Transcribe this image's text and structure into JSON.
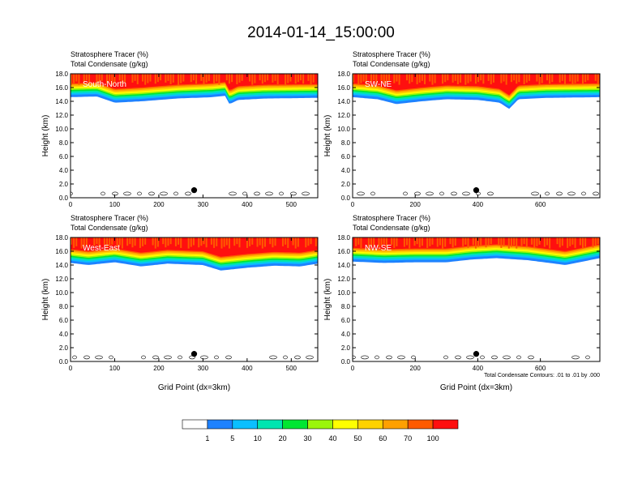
{
  "title": "2014-01-14_15:00:00",
  "contour_note": "Total Condensate Contours: .01 to .01 by .000",
  "colors": {
    "levels": [
      "#ffffff",
      "#1e82ff",
      "#0abfff",
      "#00e5b0",
      "#00e632",
      "#9bf50a",
      "#ffff00",
      "#ffd200",
      "#ffa000",
      "#ff5a00",
      "#ff0f0f"
    ],
    "contour": "#000000",
    "marker": "#000000"
  },
  "colorbar": {
    "labels": [
      "1",
      "5",
      "10",
      "20",
      "30",
      "40",
      "50",
      "60",
      "70",
      "100"
    ]
  },
  "chart_data": [
    {
      "type": "heatmap",
      "label": "South-North",
      "fields": [
        "Stratosphere Tracer   (%)",
        "Total Condensate   (g/kg)"
      ],
      "ylabel": "Height (km)",
      "xlabel": "",
      "xlim": [
        0,
        560
      ],
      "ylim": [
        0,
        18
      ],
      "xticks": [
        0,
        100,
        200,
        300,
        400,
        500
      ],
      "yticks": [
        "0.0",
        "2.0",
        "4.0",
        "6.0",
        "8.0",
        "10.0",
        "12.0",
        "14.0",
        "16.0",
        "18.0"
      ],
      "marker": {
        "x": 280,
        "y": 1.1
      },
      "tracer_base_km": [
        [
          0,
          14.6
        ],
        [
          60,
          14.7
        ],
        [
          100,
          13.8
        ],
        [
          160,
          14.0
        ],
        [
          240,
          14.4
        ],
        [
          320,
          14.6
        ],
        [
          350,
          14.8
        ],
        [
          360,
          13.6
        ],
        [
          380,
          14.2
        ],
        [
          440,
          14.4
        ],
        [
          560,
          14.5
        ]
      ]
    },
    {
      "type": "heatmap",
      "label": "SW-NE",
      "fields": [
        "Stratosphere Tracer   (%)",
        "Total Condensate   (g/kg)"
      ],
      "ylabel": "Height (km)",
      "xlabel": "",
      "xlim": [
        0,
        790
      ],
      "ylim": [
        0,
        18
      ],
      "xticks": [
        0,
        200,
        400,
        600
      ],
      "yticks": [
        "0.0",
        "2.0",
        "4.0",
        "6.0",
        "8.0",
        "10.0",
        "12.0",
        "14.0",
        "16.0",
        "18.0"
      ],
      "marker": {
        "x": 395,
        "y": 1.1
      },
      "tracer_base_km": [
        [
          0,
          14.6
        ],
        [
          80,
          14.3
        ],
        [
          140,
          13.6
        ],
        [
          220,
          14.0
        ],
        [
          300,
          14.3
        ],
        [
          400,
          14.2
        ],
        [
          470,
          13.8
        ],
        [
          500,
          12.9
        ],
        [
          530,
          14.3
        ],
        [
          620,
          14.5
        ],
        [
          790,
          14.6
        ]
      ]
    },
    {
      "type": "heatmap",
      "label": "West-East",
      "fields": [
        "Stratosphere Tracer   (%)",
        "Total Condensate   (g/kg)"
      ],
      "ylabel": "Height (km)",
      "xlabel": "Grid Point (dx=3km)",
      "xlim": [
        0,
        560
      ],
      "ylim": [
        0,
        18
      ],
      "xticks": [
        0,
        100,
        200,
        300,
        400,
        500
      ],
      "yticks": [
        "0.0",
        "2.0",
        "4.0",
        "6.0",
        "8.0",
        "10.0",
        "12.0",
        "14.0",
        "16.0",
        "18.0"
      ],
      "marker": {
        "x": 280,
        "y": 1.1
      },
      "tracer_base_km": [
        [
          0,
          14.3
        ],
        [
          40,
          14.0
        ],
        [
          100,
          14.4
        ],
        [
          160,
          13.8
        ],
        [
          220,
          14.2
        ],
        [
          300,
          14.0
        ],
        [
          340,
          13.2
        ],
        [
          400,
          13.6
        ],
        [
          460,
          13.9
        ],
        [
          520,
          13.8
        ],
        [
          560,
          14.2
        ]
      ]
    },
    {
      "type": "heatmap",
      "label": "NW-SE",
      "fields": [
        "Stratosphere Tracer   (%)",
        "Total Condensate   (g/kg)"
      ],
      "ylabel": "Height (km)",
      "xlabel": "Grid Point (dx=3km)",
      "xlim": [
        0,
        790
      ],
      "ylim": [
        0,
        18
      ],
      "xticks": [
        0,
        200,
        400,
        600
      ],
      "yticks": [
        "0.0",
        "2.0",
        "4.0",
        "6.0",
        "8.0",
        "10.0",
        "12.0",
        "14.0",
        "16.0",
        "18.0"
      ],
      "marker": {
        "x": 395,
        "y": 1.1
      },
      "tracer_base_km": [
        [
          0,
          14.5
        ],
        [
          100,
          14.3
        ],
        [
          200,
          14.4
        ],
        [
          300,
          14.4
        ],
        [
          380,
          14.8
        ],
        [
          460,
          15.0
        ],
        [
          560,
          14.7
        ],
        [
          680,
          14.0
        ],
        [
          790,
          15.0
        ]
      ]
    }
  ]
}
